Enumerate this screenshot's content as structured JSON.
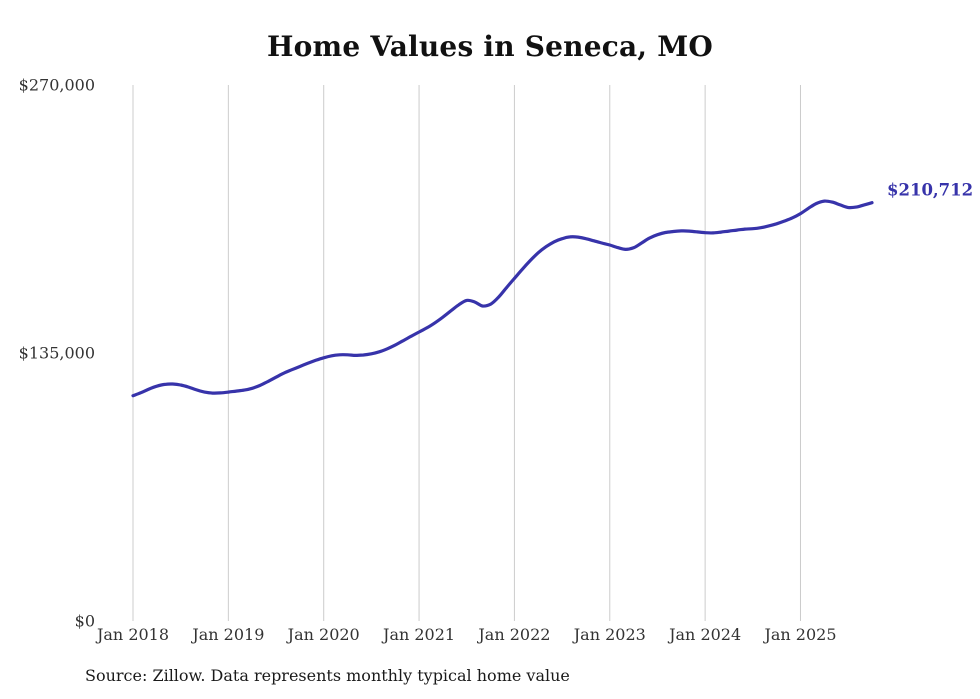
{
  "title": "Home Values in Seneca, MO",
  "source_note": "Source: Zillow. Data represents monthly typical home value",
  "end_label": "$210,712",
  "colors": {
    "line": "#3733aa",
    "grid": "#cccccc",
    "tick_text": "#333333",
    "title_text": "#111111",
    "end_label_text": "#3733aa"
  },
  "chart_data": {
    "type": "line",
    "title": "Home Values in Seneca, MO",
    "xlabel": "",
    "ylabel": "",
    "ylim": [
      0,
      270000
    ],
    "grid": "vertical-only",
    "legend": "none",
    "x_start_month": "2018-01",
    "x_end_month": "2025-10",
    "x_tick_labels": [
      "Jan 2018",
      "Jan 2019",
      "Jan 2020",
      "Jan 2021",
      "Jan 2022",
      "Jan 2023",
      "Jan 2024",
      "Jan 2025"
    ],
    "y_ticks": [
      {
        "label": "$0",
        "value": 0
      },
      {
        "label": "$135,000",
        "value": 135000
      },
      {
        "label": "$270,000",
        "value": 270000
      }
    ],
    "last_value": 210712,
    "series": [
      {
        "name": "Monthly typical home value",
        "values": [
          113500,
          115000,
          116800,
          118300,
          119200,
          119400,
          118900,
          117800,
          116400,
          115300,
          114800,
          114900,
          115300,
          115800,
          116300,
          117200,
          118700,
          120700,
          122800,
          124900,
          126600,
          128200,
          129800,
          131300,
          132600,
          133600,
          134100,
          134100,
          133800,
          134000,
          134600,
          135600,
          137100,
          139000,
          141200,
          143400,
          145600,
          147700,
          150200,
          153100,
          156200,
          159300,
          161500,
          160700,
          158700,
          159600,
          163100,
          167900,
          172600,
          177200,
          181600,
          185500,
          188600,
          191000,
          192600,
          193500,
          193400,
          192600,
          191500,
          190400,
          189400,
          188100,
          187200,
          188000,
          190400,
          192900,
          194600,
          195700,
          196200,
          196500,
          196400,
          196000,
          195600,
          195500,
          195900,
          196400,
          196900,
          197400,
          197600,
          198100,
          199000,
          200100,
          201500,
          203100,
          205200,
          207900,
          210300,
          211500,
          211000,
          209600,
          208300,
          208500,
          209600,
          210712
        ]
      }
    ]
  }
}
